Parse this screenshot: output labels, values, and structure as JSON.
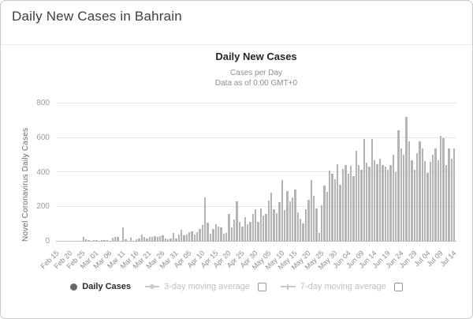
{
  "page": {
    "title": "Daily New Cases in Bahrain"
  },
  "chart": {
    "title": "Daily New Cases",
    "subtitle_line1": "Cases per Day",
    "subtitle_line2": "Data as of 0:00 GMT+0"
  },
  "legend": {
    "daily_cases_label": "Daily Cases",
    "ma3_label": "3-day moving average",
    "ma7_label": "7-day moving average"
  },
  "colors": {
    "bar": "#b4b4b4",
    "active_marker": "#696969",
    "inactive": "#c8c8c8"
  },
  "chart_data": {
    "type": "bar",
    "title": "Daily New Cases",
    "subtitle": [
      "Cases per Day",
      "Data as of 0:00 GMT+0"
    ],
    "xlabel": "",
    "ylabel": "Novel Coronavirus Daily Cases",
    "ylim": [
      0,
      800
    ],
    "yticks": [
      0,
      200,
      400,
      600,
      800
    ],
    "grid": true,
    "legend_position": "bottom",
    "legend": [
      "Daily Cases",
      "3-day moving average",
      "7-day moving average"
    ],
    "x_tick_labels": [
      "Feb 15",
      "Feb 20",
      "Feb 25",
      "Mar 01",
      "Mar 06",
      "Mar 11",
      "Mar 16",
      "Mar 21",
      "Mar 26",
      "Mar 31",
      "Apr 05",
      "Apr 10",
      "Apr 15",
      "Apr 20",
      "Apr 25",
      "Apr 30",
      "May 05",
      "May 10",
      "May 15",
      "May 20",
      "May 25",
      "May 30",
      "Jun 04",
      "Jun 09",
      "Jun 14",
      "Jun 19",
      "Jun 24",
      "Jun 29",
      "Jul 04",
      "Jul 09",
      "Jul 14"
    ],
    "x": [
      "Feb 15",
      "Feb 16",
      "Feb 17",
      "Feb 18",
      "Feb 19",
      "Feb 20",
      "Feb 21",
      "Feb 22",
      "Feb 23",
      "Feb 24",
      "Feb 25",
      "Feb 26",
      "Feb 27",
      "Feb 28",
      "Feb 29",
      "Mar 01",
      "Mar 02",
      "Mar 03",
      "Mar 04",
      "Mar 05",
      "Mar 06",
      "Mar 07",
      "Mar 08",
      "Mar 09",
      "Mar 10",
      "Mar 11",
      "Mar 12",
      "Mar 13",
      "Mar 14",
      "Mar 15",
      "Mar 16",
      "Mar 17",
      "Mar 18",
      "Mar 19",
      "Mar 20",
      "Mar 21",
      "Mar 22",
      "Mar 23",
      "Mar 24",
      "Mar 25",
      "Mar 26",
      "Mar 27",
      "Mar 28",
      "Mar 29",
      "Mar 30",
      "Mar 31",
      "Apr 01",
      "Apr 02",
      "Apr 03",
      "Apr 04",
      "Apr 05",
      "Apr 06",
      "Apr 07",
      "Apr 08",
      "Apr 09",
      "Apr 10",
      "Apr 11",
      "Apr 12",
      "Apr 13",
      "Apr 14",
      "Apr 15",
      "Apr 16",
      "Apr 17",
      "Apr 18",
      "Apr 19",
      "Apr 20",
      "Apr 21",
      "Apr 22",
      "Apr 23",
      "Apr 24",
      "Apr 25",
      "Apr 26",
      "Apr 27",
      "Apr 28",
      "Apr 29",
      "Apr 30",
      "May 01",
      "May 02",
      "May 03",
      "May 04",
      "May 05",
      "May 06",
      "May 07",
      "May 08",
      "May 09",
      "May 10",
      "May 11",
      "May 12",
      "May 13",
      "May 14",
      "May 15",
      "May 16",
      "May 17",
      "May 18",
      "May 19",
      "May 20",
      "May 21",
      "May 22",
      "May 23",
      "May 24",
      "May 25",
      "May 26",
      "May 27",
      "May 28",
      "May 29",
      "May 30",
      "May 31",
      "Jun 01",
      "Jun 02",
      "Jun 03",
      "Jun 04",
      "Jun 05",
      "Jun 06",
      "Jun 07",
      "Jun 08",
      "Jun 09",
      "Jun 10",
      "Jun 11",
      "Jun 12",
      "Jun 13",
      "Jun 14",
      "Jun 15",
      "Jun 16",
      "Jun 17",
      "Jun 18",
      "Jun 19",
      "Jun 20",
      "Jun 21",
      "Jun 22",
      "Jun 23",
      "Jun 24",
      "Jun 25",
      "Jun 26",
      "Jun 27",
      "Jun 28",
      "Jun 29",
      "Jun 30",
      "Jul 01",
      "Jul 02",
      "Jul 03",
      "Jul 04",
      "Jul 05",
      "Jul 06",
      "Jul 07",
      "Jul 08",
      "Jul 09",
      "Jul 10",
      "Jul 11",
      "Jul 12",
      "Jul 13",
      "Jul 14"
    ],
    "values": [
      0,
      0,
      0,
      0,
      0,
      0,
      0,
      0,
      0,
      2,
      21,
      10,
      3,
      2,
      3,
      6,
      2,
      3,
      4,
      6,
      2,
      19,
      25,
      24,
      2,
      80,
      9,
      2,
      17,
      2,
      9,
      13,
      36,
      23,
      12,
      22,
      23,
      28,
      21,
      26,
      31,
      15,
      8,
      13,
      45,
      12,
      36,
      65,
      30,
      38,
      50,
      56,
      35,
      50,
      70,
      90,
      255,
      105,
      42,
      70,
      98,
      82,
      76,
      42,
      46,
      155,
      78,
      125,
      230,
      110,
      85,
      140,
      98,
      112,
      155,
      185,
      112,
      190,
      145,
      155,
      235,
      280,
      185,
      160,
      225,
      355,
      180,
      290,
      230,
      255,
      300,
      165,
      130,
      100,
      185,
      240,
      355,
      260,
      190,
      45,
      205,
      320,
      285,
      410,
      390,
      360,
      445,
      325,
      420,
      440,
      390,
      435,
      375,
      525,
      440,
      415,
      595,
      455,
      430,
      595,
      470,
      445,
      480,
      440,
      430,
      415,
      440,
      500,
      400,
      645,
      540,
      500,
      720,
      580,
      470,
      415,
      510,
      580,
      540,
      465,
      395,
      460,
      500,
      540,
      470,
      610,
      600,
      440,
      540,
      480,
      540
    ],
    "bar_color": "#b4b4b4"
  }
}
